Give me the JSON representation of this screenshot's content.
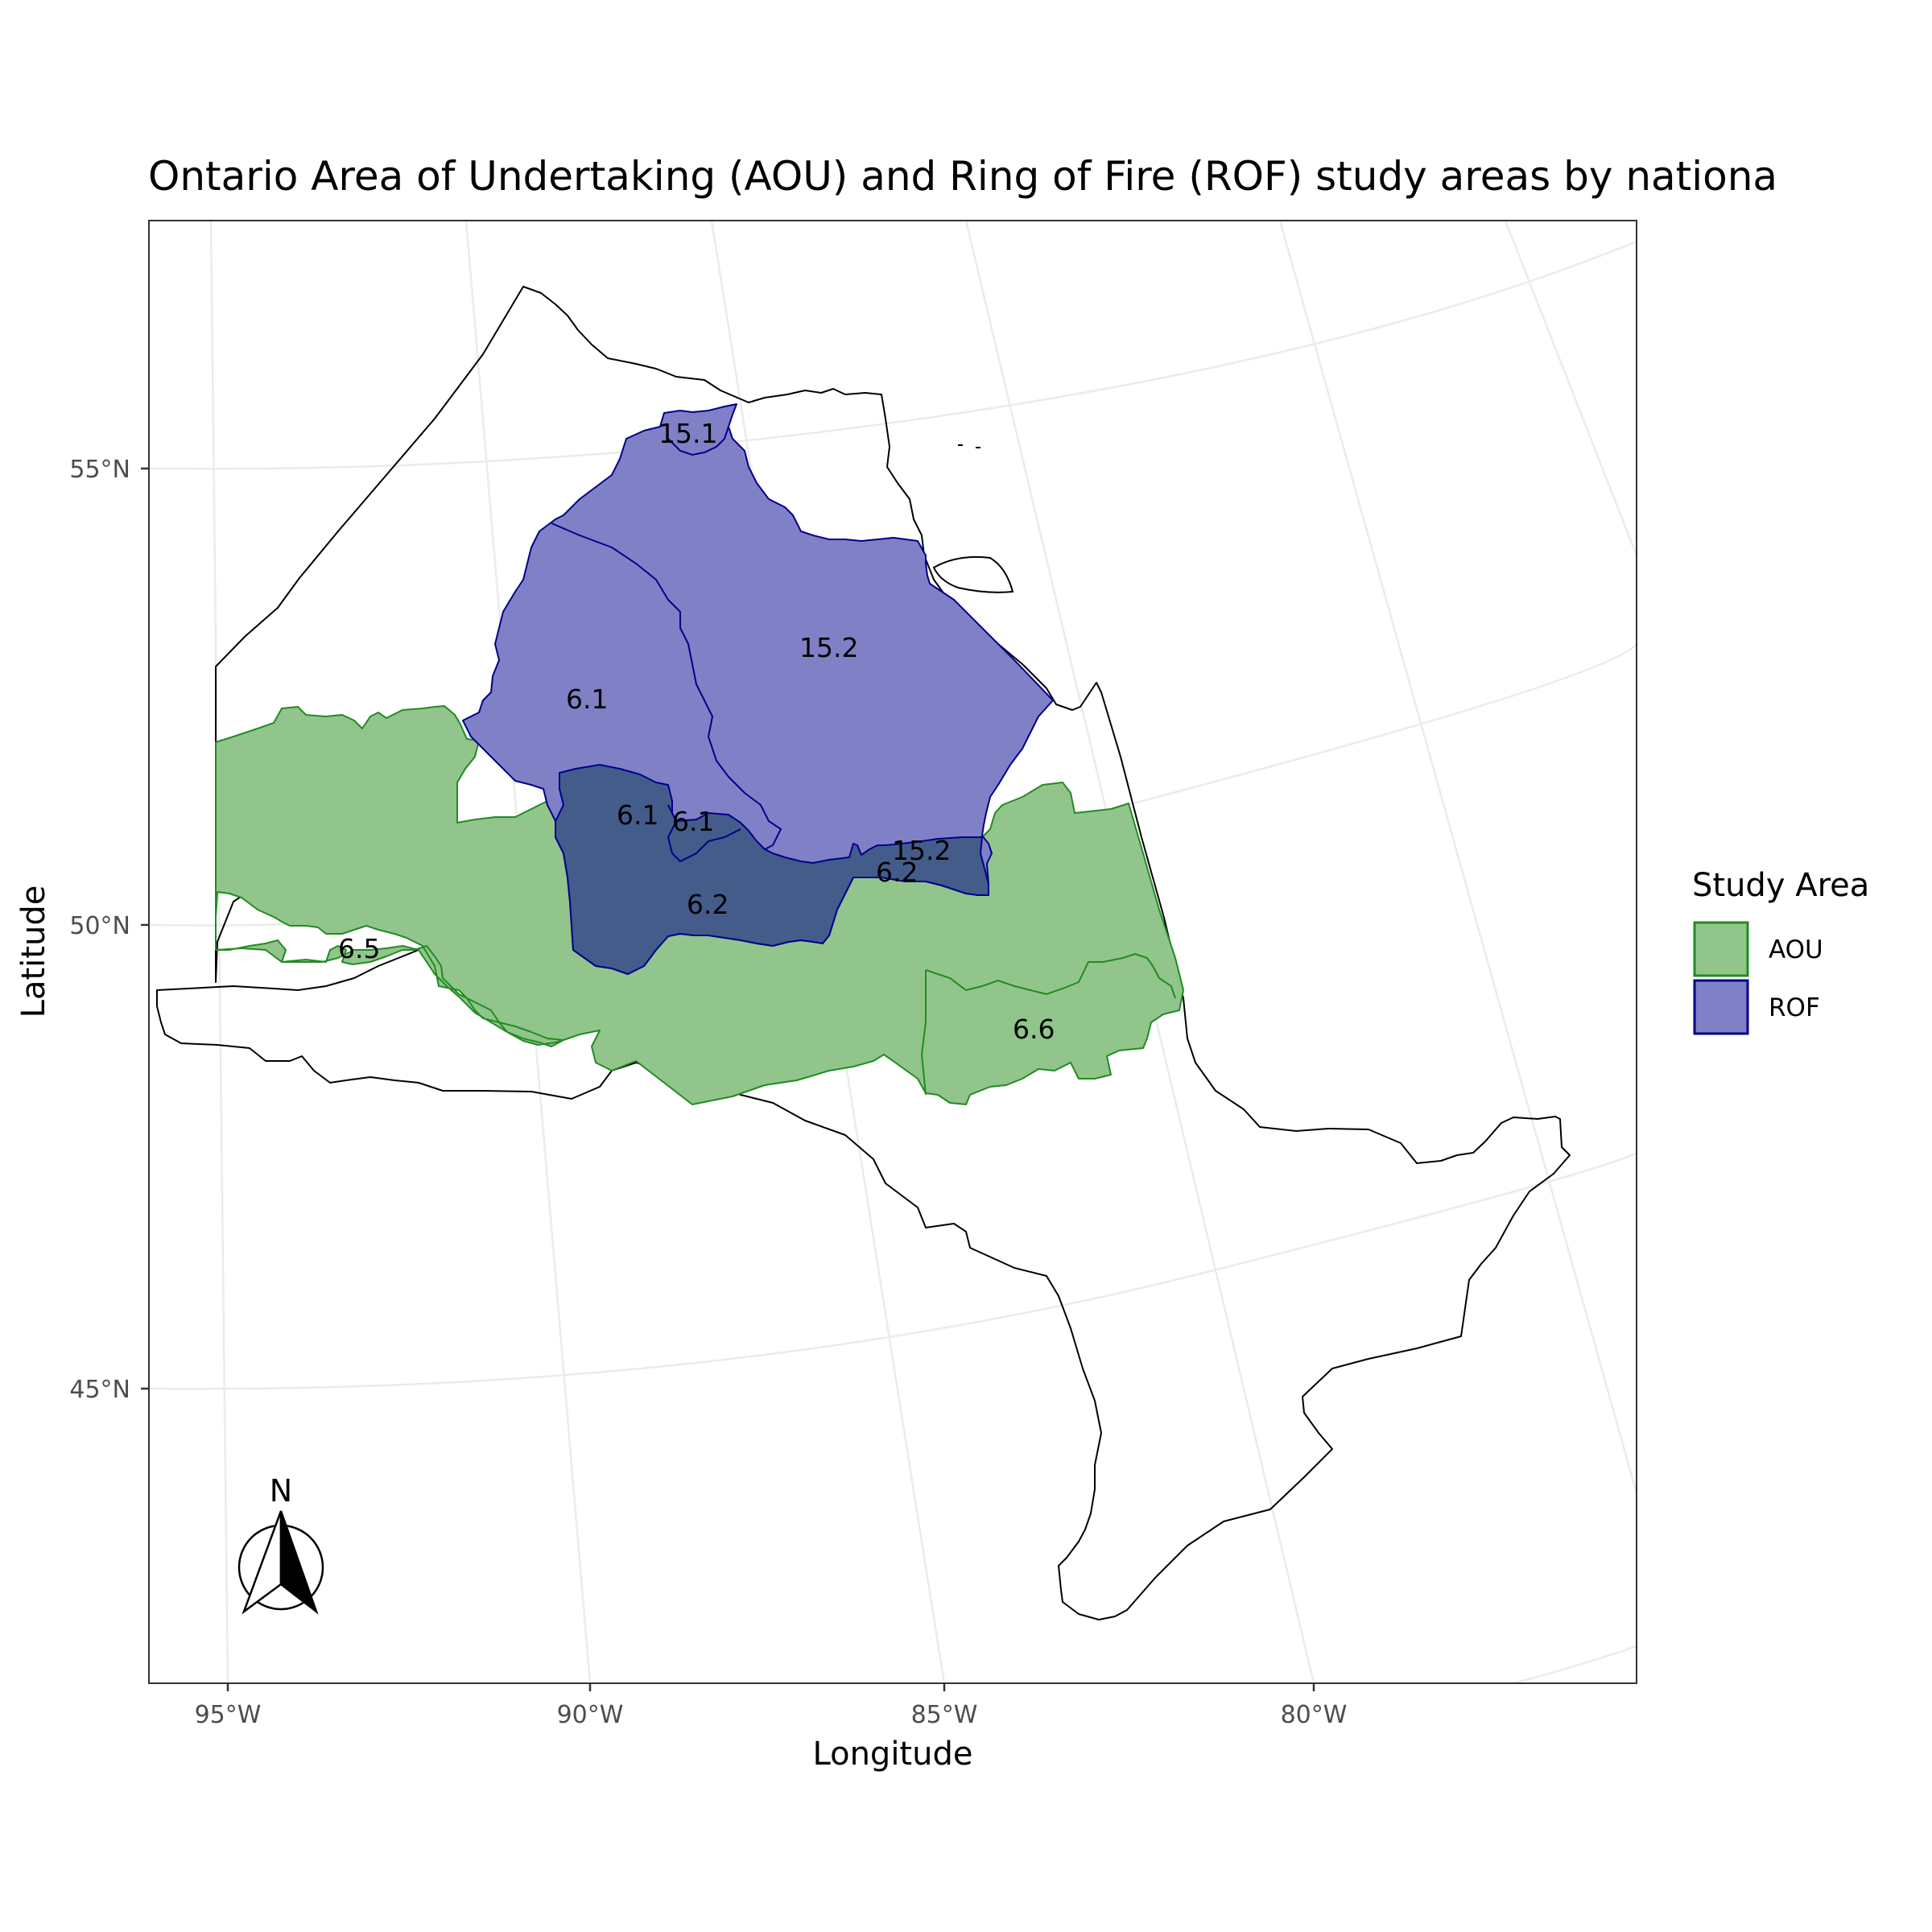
{
  "title": "Ontario Area of Undertaking (AOU) and Ring of Fire (ROF) study areas by nationa",
  "axes": {
    "x_label": "Longitude",
    "y_label": "Latitude",
    "x_ticks": [
      "95°W",
      "90°W",
      "85°W",
      "80°W"
    ],
    "y_ticks": [
      "55°N",
      "50°N",
      "45°N"
    ]
  },
  "legend": {
    "title": "Study Area",
    "items": [
      {
        "label": "AOU",
        "fill": "#91c58c",
        "stroke": "#228b22"
      },
      {
        "label": "ROF",
        "fill": "#8080c6",
        "stroke": "#00008b"
      }
    ]
  },
  "north_arrow": {
    "label": "N"
  },
  "region_labels": {
    "rof_15_1": "15.1",
    "rof_15_2_north": "15.2",
    "rof_6_1_west": "6.1",
    "overlap_6_1_a": "6.1",
    "overlap_6_1_b": "6.1",
    "overlap_15_2": "15.2",
    "overlap_6_2_east": "6.2",
    "overlap_6_2_south": "6.2",
    "aou_6_5": "6.5",
    "aou_6_6": "6.6"
  },
  "colors": {
    "aou_fill": "#91c58c",
    "aou_stroke": "#228b22",
    "rof_fill": "#8080c6",
    "rof_stroke": "#00008b",
    "overlap_fill": "#445c8a",
    "grid": "#ebebeb",
    "outline": "#000000"
  }
}
